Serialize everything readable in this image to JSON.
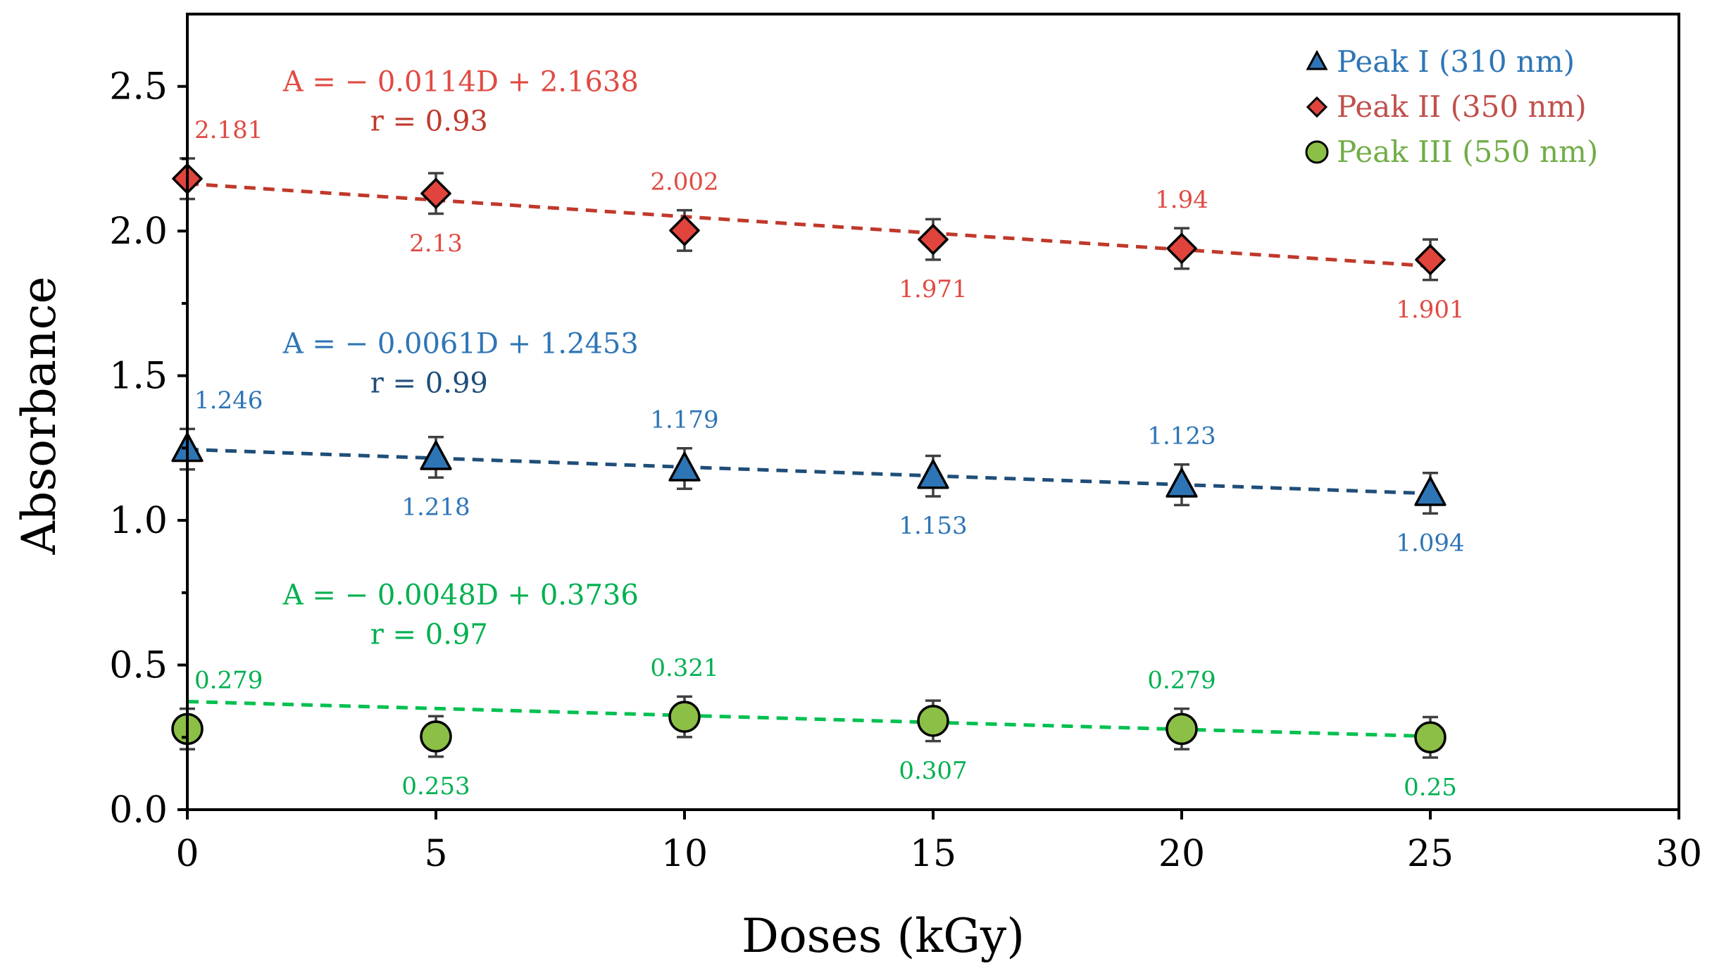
{
  "chart_data": {
    "type": "scatter",
    "title": "",
    "xlabel": "Doses (kGy)",
    "ylabel": "Absorbance",
    "xlim": [
      0,
      30
    ],
    "ylim": [
      0,
      2.75
    ],
    "xticks": [
      0,
      5,
      10,
      15,
      20,
      25,
      30
    ],
    "yticks": [
      0.0,
      0.5,
      1.0,
      1.5,
      2.0,
      2.5
    ],
    "xtick_labels": [
      "0",
      "5",
      "10",
      "15",
      "20",
      "25",
      "30"
    ],
    "ytick_labels": [
      "0.0",
      "0.5",
      "1.0",
      "1.5",
      "2.0",
      "2.5"
    ],
    "grid": false,
    "legend_position": "top-right",
    "x": [
      0,
      5,
      10,
      15,
      20,
      25
    ],
    "series": [
      {
        "name": "Peak I (310 nm)",
        "marker": "triangle",
        "color": "#2e75b6",
        "label_color": "#2e75b6",
        "fit_color": "#1f4e79",
        "values": [
          1.246,
          1.218,
          1.179,
          1.153,
          1.123,
          1.094
        ],
        "labels": [
          "1.246",
          "1.218",
          "1.179",
          "1.153",
          "1.123",
          "1.094"
        ],
        "label_side": [
          "above-right",
          "below",
          "above",
          "below",
          "above",
          "below"
        ],
        "error": 0.07,
        "fit": {
          "slope": -0.0061,
          "intercept": 1.2453
        },
        "equation": "A = − 0.0061D + 1.2453",
        "r_text": "r = 0.99"
      },
      {
        "name": "Peak II (350 nm)",
        "marker": "diamond",
        "color": "#e0443c",
        "label_color": "#e04a43",
        "fit_color": "#c0392b",
        "values": [
          2.181,
          2.13,
          2.002,
          1.971,
          1.94,
          1.901
        ],
        "labels": [
          "2.181",
          "2.13",
          "2.002",
          "1.971",
          "1.94",
          "1.901"
        ],
        "label_side": [
          "above-right",
          "below",
          "above",
          "below",
          "above",
          "below"
        ],
        "error": 0.07,
        "fit": {
          "slope": -0.0114,
          "intercept": 2.1638
        },
        "equation": "A = − 0.0114D + 2.1638",
        "r_text": "r = 0.93"
      },
      {
        "name": "Peak III (550 nm)",
        "marker": "circle",
        "color": "#8cbf45",
        "label_color": "#00b050",
        "fit_color": "#00c050",
        "values": [
          0.279,
          0.253,
          0.321,
          0.307,
          0.279,
          0.25
        ],
        "labels": [
          "0.279",
          "0.253",
          "0.321",
          "0.307",
          "0.279",
          "0.25"
        ],
        "label_side": [
          "above-right",
          "below",
          "above",
          "below",
          "above",
          "below"
        ],
        "error": 0.07,
        "fit": {
          "slope": -0.0048,
          "intercept": 0.3736
        },
        "equation": "A = − 0.0048D + 0.3736",
        "r_text": "r = 0.97"
      }
    ]
  },
  "legend_text_colors": [
    "#2e75b6",
    "#c0504d",
    "#70ad47"
  ]
}
